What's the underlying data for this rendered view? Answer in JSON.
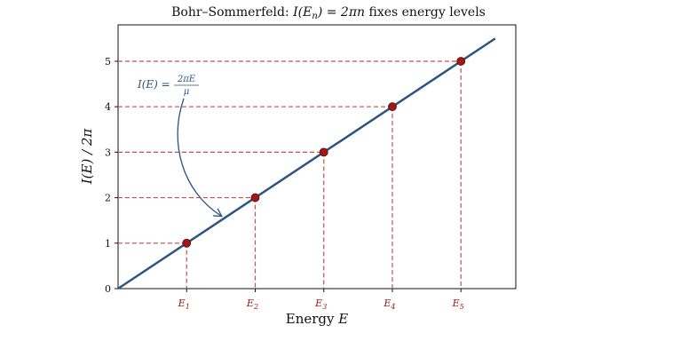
{
  "chart_data": {
    "type": "line",
    "title": {
      "prefix": "Bohr–Sommerfeld: ",
      "math": "I(E",
      "math_sub": "n",
      "math_rest": ") = 2πn",
      "suffix": " fixes energy levels"
    },
    "xlabel": {
      "text": "Energy ",
      "math": "E"
    },
    "ylabel": "I(E) / 2π",
    "xlim": [
      0,
      5.8
    ],
    "ylim": [
      0,
      5.8
    ],
    "yticks": [
      "0",
      "1",
      "2",
      "3",
      "4",
      "5"
    ],
    "ytick_values": [
      0,
      1,
      2,
      3,
      4,
      5
    ],
    "series": [
      {
        "x": [
          0,
          5.5
        ],
        "y": [
          0,
          5.5
        ],
        "color": "#2b5580"
      }
    ],
    "levels": {
      "x": [
        1,
        2,
        3,
        4,
        5
      ],
      "y": [
        1,
        2,
        3,
        4,
        5
      ],
      "labels": [
        "E",
        "E",
        "E",
        "E",
        "E"
      ],
      "label_subs": [
        "1",
        "2",
        "3",
        "4",
        "5"
      ],
      "point_color": "#a01818",
      "guide_color": "#c0504d"
    },
    "annotation": {
      "text": "I(E) = ",
      "num": "2πE",
      "den": "μ",
      "target_x": 1.5,
      "target_y": 1.5,
      "color": "#2b5580"
    },
    "grid": false
  }
}
